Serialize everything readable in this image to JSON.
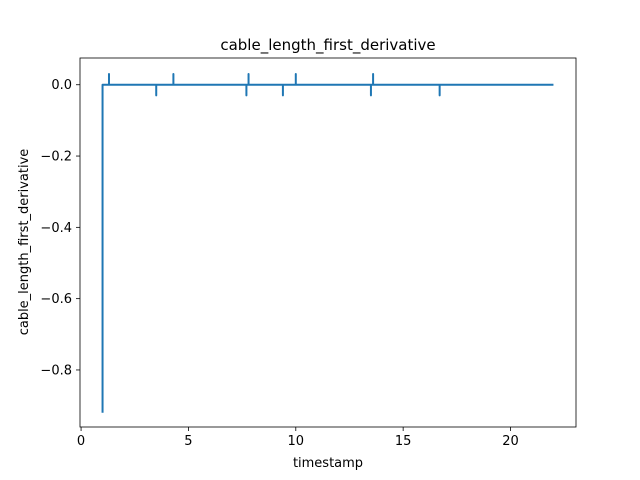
{
  "chart_data": {
    "type": "line",
    "title": "cable_length_first_derivative",
    "xlabel": "timestamp",
    "ylabel": "cable_length_first_derivative",
    "xlim": [
      -0.05,
      23.05
    ],
    "ylim": [
      -0.96,
      0.075
    ],
    "xticks": [
      0,
      5,
      10,
      15,
      20
    ],
    "xtick_labels": [
      "0",
      "5",
      "10",
      "15",
      "20"
    ],
    "yticks": [
      0.0,
      -0.2,
      -0.4,
      -0.6,
      -0.8
    ],
    "ytick_labels": [
      "0.0",
      "−0.2",
      "−0.4",
      "−0.6",
      "−0.8"
    ],
    "grid": false,
    "legend": "none",
    "series": [
      {
        "color": "#1f77b4",
        "x": [
          1.0,
          1.0,
          1.0,
          1.3,
          1.3,
          1.3,
          3.5,
          3.5,
          3.5,
          4.3,
          4.3,
          4.3,
          7.7,
          7.7,
          7.7,
          7.8,
          7.8,
          7.8,
          9.4,
          9.4,
          9.4,
          10.0,
          10.0,
          10.0,
          13.5,
          13.5,
          13.5,
          13.6,
          13.6,
          13.6,
          16.7,
          16.7,
          16.7,
          22.0
        ],
        "y": [
          -0.92,
          0.0,
          0.0,
          0.0,
          0.03,
          0.0,
          0.0,
          -0.03,
          0.0,
          0.0,
          0.03,
          0.0,
          0.0,
          -0.03,
          0.0,
          0.0,
          0.03,
          0.0,
          0.0,
          -0.03,
          0.0,
          0.0,
          0.03,
          0.0,
          0.0,
          -0.03,
          0.0,
          0.0,
          0.03,
          0.0,
          0.0,
          -0.03,
          0.0,
          0.0
        ]
      }
    ]
  }
}
